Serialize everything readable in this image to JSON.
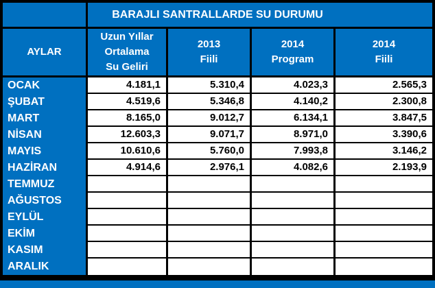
{
  "title": "BARAJLI SANTRALLARDE SU DURUMU",
  "colors": {
    "header_blue": "#0070C0",
    "border_black": "#000000",
    "cell_white": "#FFFFFF",
    "header_text_white": "#FFFFFF",
    "value_text_black": "#000000"
  },
  "table": {
    "month_column_header": "AYLAR",
    "column_headers": [
      "Uzun Yıllar\nOrtalama\nSu Geliri",
      "2013\nFiili",
      "2014\nProgram",
      "2014\nFiili"
    ],
    "rows": [
      {
        "month": "OCAK",
        "values": [
          "4.181,1",
          "5.310,4",
          "4.023,3",
          "2.565,3"
        ]
      },
      {
        "month": "ŞUBAT",
        "values": [
          "4.519,6",
          "5.346,8",
          "4.140,2",
          "2.300,8"
        ]
      },
      {
        "month": "MART",
        "values": [
          "8.165,0",
          "9.012,7",
          "6.134,1",
          "3.847,5"
        ]
      },
      {
        "month": "NİSAN",
        "values": [
          "12.603,3",
          "9.071,7",
          "8.971,0",
          "3.390,6"
        ]
      },
      {
        "month": "MAYIS",
        "values": [
          "10.610,6",
          "5.760,0",
          "7.993,8",
          "3.146,2"
        ]
      },
      {
        "month": "HAZİRAN",
        "values": [
          "4.914,6",
          "2.976,1",
          "4.082,6",
          "2.193,9"
        ]
      },
      {
        "month": "TEMMUZ",
        "values": [
          "",
          "",
          "",
          ""
        ]
      },
      {
        "month": "AĞUSTOS",
        "values": [
          "",
          "",
          "",
          ""
        ]
      },
      {
        "month": "EYLÜL",
        "values": [
          "",
          "",
          "",
          ""
        ]
      },
      {
        "month": "EKİM",
        "values": [
          "",
          "",
          "",
          ""
        ]
      },
      {
        "month": "KASIM",
        "values": [
          "",
          "",
          "",
          ""
        ]
      },
      {
        "month": "ARALIK",
        "values": [
          "",
          "",
          "",
          ""
        ]
      }
    ]
  },
  "chart_data": {
    "type": "table",
    "title": "BARAJLI SANTRALLARDE SU DURUMU",
    "columns": [
      "AYLAR",
      "Uzun Yıllar Ortalama Su Geliri",
      "2013 Fiili",
      "2014 Program",
      "2014 Fiili"
    ],
    "rows": [
      [
        "OCAK",
        4181.1,
        5310.4,
        4023.3,
        2565.3
      ],
      [
        "ŞUBAT",
        4519.6,
        5346.8,
        4140.2,
        2300.8
      ],
      [
        "MART",
        8165.0,
        9012.7,
        6134.1,
        3847.5
      ],
      [
        "NİSAN",
        12603.3,
        9071.7,
        8971.0,
        3390.6
      ],
      [
        "MAYIS",
        10610.6,
        5760.0,
        7993.8,
        3146.2
      ],
      [
        "HAZİRAN",
        4914.6,
        2976.1,
        4082.6,
        2193.9
      ],
      [
        "TEMMUZ",
        null,
        null,
        null,
        null
      ],
      [
        "AĞUSTOS",
        null,
        null,
        null,
        null
      ],
      [
        "EYLÜL",
        null,
        null,
        null,
        null
      ],
      [
        "EKİM",
        null,
        null,
        null,
        null
      ],
      [
        "KASIM",
        null,
        null,
        null,
        null
      ],
      [
        "ARALIK",
        null,
        null,
        null,
        null
      ]
    ],
    "number_format": "thousands separator '.', decimal separator ','",
    "layout": {
      "empty_months": [
        "TEMMUZ",
        "AĞUSTOS",
        "EYLÜL",
        "EKİM",
        "KASIM",
        "ARALIK"
      ]
    }
  }
}
